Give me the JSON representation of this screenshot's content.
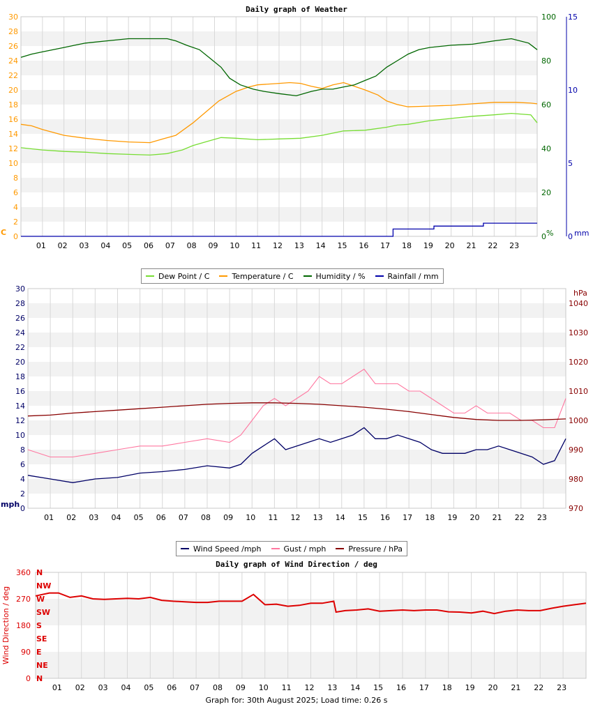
{
  "footer": "Graph for: 30th August 2025; Load time: 0.26 s",
  "chart_data": [
    {
      "type": "line",
      "title": "Daily graph of Weather",
      "x_ticks": [
        "01",
        "02",
        "03",
        "04",
        "05",
        "06",
        "07",
        "08",
        "09",
        "10",
        "11",
        "12",
        "13",
        "14",
        "15",
        "16",
        "17",
        "18",
        "19",
        "20",
        "21",
        "22",
        "23"
      ],
      "xlim": [
        0,
        24
      ],
      "left_axis": {
        "unit": "C",
        "ylim": [
          0,
          30
        ],
        "ticks": [
          "0",
          "2",
          "4",
          "6",
          "8",
          "10",
          "12",
          "14",
          "16",
          "18",
          "20",
          "22",
          "24",
          "26",
          "28",
          "30"
        ],
        "color": "#ff9900"
      },
      "right_axis_1": {
        "unit": "%",
        "ylim": [
          0,
          100
        ],
        "ticks": [
          "0",
          "20",
          "40",
          "60",
          "80",
          "100"
        ],
        "color": "#006600"
      },
      "right_axis_2": {
        "unit": "mm",
        "ylim": [
          0,
          15
        ],
        "ticks": [
          "0",
          "5",
          "10",
          "15"
        ],
        "color": "#0000aa"
      },
      "series": [
        {
          "name": "Dew Point / C",
          "color": "#77dd33",
          "axis": "left",
          "x": [
            0,
            1,
            2,
            3,
            4,
            5,
            6,
            6.8,
            7.5,
            8,
            8.7,
            9.3,
            10,
            11,
            12,
            13,
            14,
            15,
            16,
            17,
            17.5,
            18,
            19,
            20,
            21,
            22,
            22.8,
            23.7,
            24
          ],
          "y": [
            12.1,
            11.8,
            11.6,
            11.5,
            11.3,
            11.2,
            11.1,
            11.3,
            11.8,
            12.4,
            13.0,
            13.5,
            13.4,
            13.2,
            13.3,
            13.4,
            13.8,
            14.4,
            14.5,
            14.9,
            15.2,
            15.3,
            15.8,
            16.1,
            16.4,
            16.6,
            16.8,
            16.6,
            15.5
          ]
        },
        {
          "name": "Temperature / C",
          "color": "#ff9900",
          "axis": "left",
          "x": [
            0,
            0.5,
            1,
            2,
            3,
            4,
            5,
            6,
            6.6,
            7.2,
            8,
            8.6,
            9.2,
            10,
            10.6,
            11,
            12,
            12.5,
            13,
            13.5,
            14,
            14.5,
            15,
            15.5,
            16,
            16.6,
            17,
            17.5,
            18,
            19,
            20,
            21,
            22,
            23,
            23.7,
            24
          ],
          "y": [
            15.3,
            15.1,
            14.6,
            13.8,
            13.4,
            13.1,
            12.9,
            12.8,
            13.3,
            13.8,
            15.5,
            17.0,
            18.5,
            19.8,
            20.4,
            20.7,
            20.9,
            21.0,
            20.9,
            20.5,
            20.2,
            20.7,
            21.0,
            20.5,
            20.0,
            19.3,
            18.5,
            18.0,
            17.7,
            17.8,
            17.9,
            18.1,
            18.3,
            18.3,
            18.2,
            18.1
          ]
        },
        {
          "name": "Humidity / %",
          "color": "#006600",
          "axis": "right1",
          "x": [
            0,
            0.5,
            1,
            1.5,
            2,
            2.5,
            3,
            4,
            5,
            6,
            6.8,
            7.2,
            7.7,
            8.3,
            8.8,
            9.3,
            9.7,
            10.2,
            10.8,
            11.3,
            12,
            12.8,
            13.5,
            14,
            14.5,
            15,
            15.5,
            16,
            16.5,
            17,
            17.5,
            18,
            18.5,
            19,
            20,
            21,
            22,
            22.8,
            23.6,
            24
          ],
          "y": [
            81.5,
            83,
            84,
            85,
            86,
            87,
            88,
            89,
            90,
            90,
            90,
            89,
            87,
            85,
            81,
            77,
            72,
            69,
            67,
            66,
            65,
            64,
            66,
            67,
            67,
            68,
            69,
            71,
            73,
            77,
            80,
            83,
            85,
            86,
            87,
            87.5,
            89,
            90,
            88,
            85
          ]
        },
        {
          "name": "Rainfall / mm",
          "color": "#0000aa",
          "axis": "right2",
          "x": [
            0,
            17.3,
            17.3,
            19.2,
            19.2,
            21.5,
            21.5,
            24
          ],
          "y": [
            0,
            0,
            0.5,
            0.5,
            0.7,
            0.7,
            0.9,
            0.9
          ]
        }
      ]
    },
    {
      "type": "line",
      "title": "",
      "x_ticks": [
        "01",
        "02",
        "03",
        "04",
        "05",
        "06",
        "07",
        "08",
        "09",
        "10",
        "11",
        "12",
        "13",
        "14",
        "15",
        "16",
        "17",
        "18",
        "19",
        "20",
        "21",
        "22",
        "23"
      ],
      "xlim": [
        0,
        24
      ],
      "left_axis": {
        "unit": "mph",
        "ylim": [
          0,
          30
        ],
        "ticks": [
          "0",
          "2",
          "4",
          "6",
          "8",
          "10",
          "12",
          "14",
          "16",
          "18",
          "20",
          "22",
          "24",
          "26",
          "28",
          "30"
        ],
        "color": "#000066"
      },
      "right_axis_1": {
        "unit": "hPa",
        "ylim": [
          970,
          1045
        ],
        "ticks": [
          "970",
          "980",
          "990",
          "1000",
          "1010",
          "1020",
          "1030",
          "1040"
        ],
        "color": "#880000"
      },
      "series": [
        {
          "name": "Wind Speed /mph",
          "color": "#000066",
          "axis": "left",
          "x": [
            0,
            1,
            2,
            3,
            4,
            5,
            6,
            7,
            8,
            9,
            9.5,
            10,
            10.5,
            11,
            11.5,
            12,
            12.5,
            13,
            13.5,
            14,
            14.5,
            15,
            15.5,
            16,
            16.5,
            17,
            17.5,
            18,
            18.5,
            19,
            19.5,
            20,
            20.5,
            21,
            21.5,
            22,
            22.5,
            23,
            23.5,
            24
          ],
          "y": [
            4.5,
            4.0,
            3.5,
            4.0,
            4.2,
            4.8,
            5.0,
            5.3,
            5.8,
            5.5,
            6.0,
            7.5,
            8.5,
            9.5,
            8.0,
            8.5,
            9.0,
            9.5,
            9.0,
            9.5,
            10.0,
            11.0,
            9.5,
            9.5,
            10.0,
            9.5,
            9.0,
            8.0,
            7.5,
            7.5,
            7.5,
            8.0,
            8.0,
            8.5,
            8.0,
            7.5,
            7.0,
            6.0,
            6.5,
            9.5
          ]
        },
        {
          "name": "Gust / mph",
          "color": "#ff77a0",
          "axis": "left",
          "x": [
            0,
            1,
            2,
            3,
            4,
            5,
            6,
            7,
            8,
            9,
            9.5,
            10,
            10.5,
            11,
            11.5,
            12,
            12.5,
            13,
            13.5,
            14,
            14.5,
            15,
            15.5,
            16,
            16.5,
            17,
            17.5,
            18,
            18.5,
            19,
            19.5,
            20,
            20.5,
            21,
            21.5,
            22,
            22.5,
            23,
            23.5,
            24
          ],
          "y": [
            8,
            7,
            7,
            7.5,
            8,
            8.5,
            8.5,
            9,
            9.5,
            9,
            10,
            12,
            14,
            15,
            14,
            15,
            16,
            18,
            17,
            17,
            18,
            19,
            17,
            17,
            17,
            16,
            16,
            15,
            14,
            13,
            13,
            14,
            13,
            13,
            13,
            12,
            12,
            11,
            11,
            15
          ]
        },
        {
          "name": "Pressure / hPa",
          "color": "#880000",
          "axis": "right1",
          "x": [
            0,
            1,
            2,
            3,
            4,
            5,
            6,
            7,
            8,
            9,
            10,
            11,
            12,
            13,
            14,
            15,
            16,
            17,
            18,
            19,
            20,
            21,
            22,
            23,
            24
          ],
          "y": [
            1001.5,
            1001.8,
            1002.5,
            1003.0,
            1003.5,
            1004.0,
            1004.5,
            1005.0,
            1005.5,
            1005.8,
            1006.0,
            1006.0,
            1005.8,
            1005.5,
            1005.0,
            1004.5,
            1003.8,
            1003.0,
            1002.0,
            1001.0,
            1000.3,
            1000.0,
            1000.0,
            1000.2,
            1000.5
          ]
        }
      ]
    },
    {
      "type": "scatter",
      "title": "Daily graph of Wind Direction / deg",
      "ylabel": "Wind Direction / deg",
      "x_ticks": [
        "01",
        "02",
        "03",
        "04",
        "05",
        "06",
        "07",
        "08",
        "09",
        "10",
        "11",
        "12",
        "13",
        "14",
        "15",
        "16",
        "17",
        "18",
        "19",
        "20",
        "21",
        "22",
        "23"
      ],
      "xlim": [
        0,
        24
      ],
      "ylim": [
        0,
        360
      ],
      "y_ticks": [
        "0",
        "90",
        "180",
        "270",
        "360"
      ],
      "compass_labels": [
        "N",
        "NE",
        "E",
        "SE",
        "S",
        "SW",
        "W",
        "NW",
        "N"
      ],
      "series": [
        {
          "name": "Wind Direction",
          "color": "#dd0000",
          "x": [
            0,
            0.3,
            0.6,
            1,
            1.5,
            2,
            2.5,
            3,
            3.5,
            4,
            4.5,
            5,
            5.5,
            6,
            6.5,
            7,
            7.5,
            8,
            8.5,
            9,
            9.5,
            10,
            10.5,
            11,
            11.5,
            12,
            12.5,
            13,
            13.1,
            13.5,
            14,
            14.5,
            15,
            15.5,
            16,
            16.5,
            17,
            17.5,
            18,
            18.5,
            19,
            19.5,
            20,
            20.5,
            21,
            21.5,
            22,
            22.5,
            23,
            23.5,
            24
          ],
          "y": [
            280,
            285,
            290,
            290,
            275,
            280,
            270,
            268,
            270,
            272,
            270,
            275,
            265,
            262,
            260,
            258,
            258,
            262,
            262,
            262,
            285,
            250,
            252,
            245,
            248,
            255,
            255,
            262,
            225,
            230,
            232,
            236,
            228,
            230,
            232,
            230,
            232,
            232,
            226,
            225,
            222,
            228,
            220,
            228,
            232,
            230,
            230,
            238,
            245,
            250,
            255
          ]
        }
      ]
    }
  ],
  "legend_weather": [
    {
      "label": "Dew Point / C",
      "color": "#77dd33"
    },
    {
      "label": "Temperature / C",
      "color": "#ff9900"
    },
    {
      "label": "Humidity / %",
      "color": "#006600"
    },
    {
      "label": "Rainfall / mm",
      "color": "#0000aa"
    }
  ],
  "legend_wind": [
    {
      "label": "Wind Speed /mph",
      "color": "#000066"
    },
    {
      "label": "Gust / mph",
      "color": "#ff77a0"
    },
    {
      "label": "Pressure / hPa",
      "color": "#880000"
    }
  ]
}
